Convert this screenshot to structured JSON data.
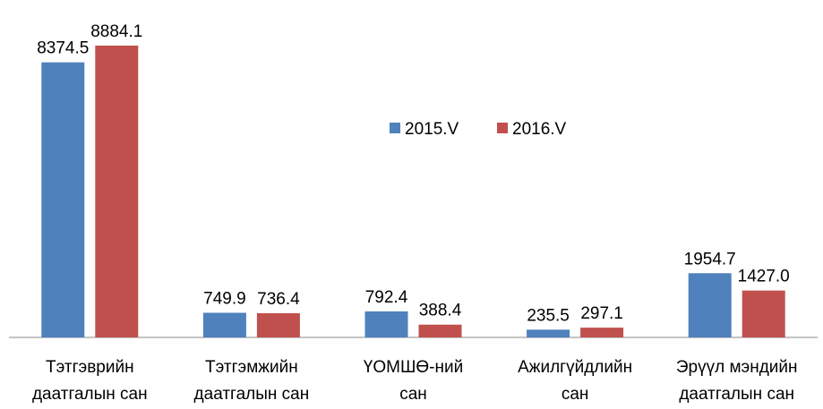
{
  "chart_data": {
    "type": "bar",
    "categories": [
      "Тэтгэврийн\nдаатгалын сан",
      "Тэтгэмжийн\nдаатгалын сан",
      "ҮОМШӨ-ний\nсан",
      "Ажилгүйдлийн\nсан",
      "Эрүүл мэндийн\nдаатгалын сан"
    ],
    "series": [
      {
        "name": "2015.V",
        "color": "#4f81bd",
        "values": [
          8374.5,
          749.9,
          792.4,
          235.5,
          1954.7
        ],
        "value_labels": [
          "8374.5",
          "749.9",
          "792.4",
          "235.5",
          "1954.7"
        ]
      },
      {
        "name": "2016.V",
        "color": "#c0504d",
        "values": [
          8884.1,
          736.4,
          388.4,
          297.1,
          1427
        ],
        "value_labels": [
          "8884.1",
          "736.4",
          "388.4",
          "297.1",
          "1427.0"
        ]
      }
    ],
    "ylim": [
      0,
      10000
    ]
  }
}
